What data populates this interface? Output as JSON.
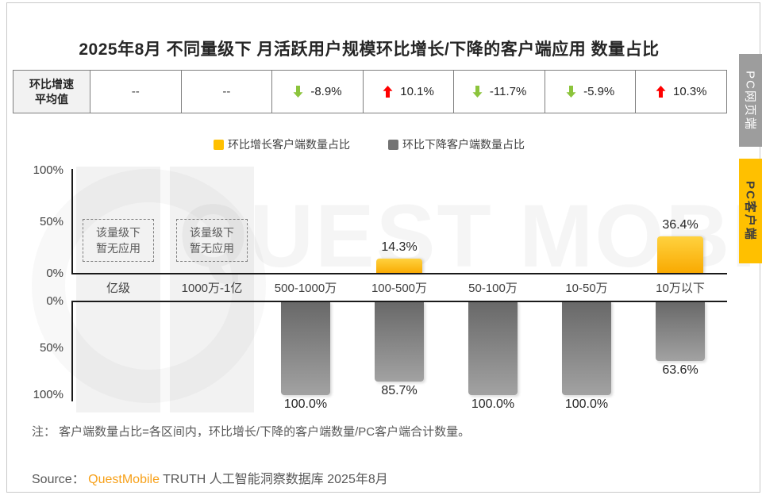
{
  "title": "2025年8月 不同量级下 月活跃用户规模环比增长/下降的客户端应用 数量占比",
  "summary_table": {
    "header_line1": "环比增速",
    "header_line2": "平均值",
    "cells": [
      {
        "value": "--",
        "direction": "none"
      },
      {
        "value": "--",
        "direction": "none"
      },
      {
        "value": "-8.9%",
        "direction": "down"
      },
      {
        "value": "10.1%",
        "direction": "up"
      },
      {
        "value": "-11.7%",
        "direction": "down"
      },
      {
        "value": "-5.9%",
        "direction": "down"
      },
      {
        "value": "10.3%",
        "direction": "up"
      }
    ]
  },
  "legend": [
    {
      "label": "环比增长客户端数量占比",
      "color": "#FFC000"
    },
    {
      "label": "环比下降客户端数量占比",
      "color": "#737373"
    }
  ],
  "chart_data": {
    "type": "bar",
    "categories": [
      "亿级",
      "1000万-1亿",
      "500-1000万",
      "100-500万",
      "50-100万",
      "10-50万",
      "10万以下"
    ],
    "series": [
      {
        "name": "环比增长客户端数量占比",
        "color": "#FFC000",
        "values": [
          null,
          null,
          0.0,
          14.3,
          0.0,
          0.0,
          36.4
        ]
      },
      {
        "name": "环比下降客户端数量占比",
        "color": "#737373",
        "values": [
          null,
          null,
          100.0,
          85.7,
          100.0,
          100.0,
          63.6
        ]
      }
    ],
    "avg_growth_row": [
      "--",
      "--",
      "-8.9%",
      "10.1%",
      "-11.7%",
      "-5.9%",
      "10.3%"
    ],
    "no_data_lines": [
      "该量级下",
      "暂无应用"
    ],
    "y_ticks_top": [
      "100%",
      "50%",
      "0%"
    ],
    "y_ticks_bottom": [
      "0%",
      "50%",
      "100%"
    ],
    "ylim": [
      0,
      100
    ],
    "grid": false,
    "legend_position": "top"
  },
  "side_tabs": [
    {
      "label": "PC网页端",
      "active": false
    },
    {
      "label": "PC客户端",
      "active": true
    }
  ],
  "watermark": "QUEST MOBILE",
  "note": "注： 客户端数量占比=各区间内，环比增长/下降的客户端数量/PC客户端合计数量。",
  "source": {
    "prefix": "Source：",
    "brand": "QuestMobile",
    "suffix": " TRUTH 人工智能洞察数据库 2025年8月"
  },
  "colors": {
    "accent_yellow": "#FFC000",
    "bar_gray": "#737373",
    "arrow_up_red": "#FF0000",
    "arrow_down_green": "#8CC43C",
    "band_gray": "#F2F2F2"
  }
}
